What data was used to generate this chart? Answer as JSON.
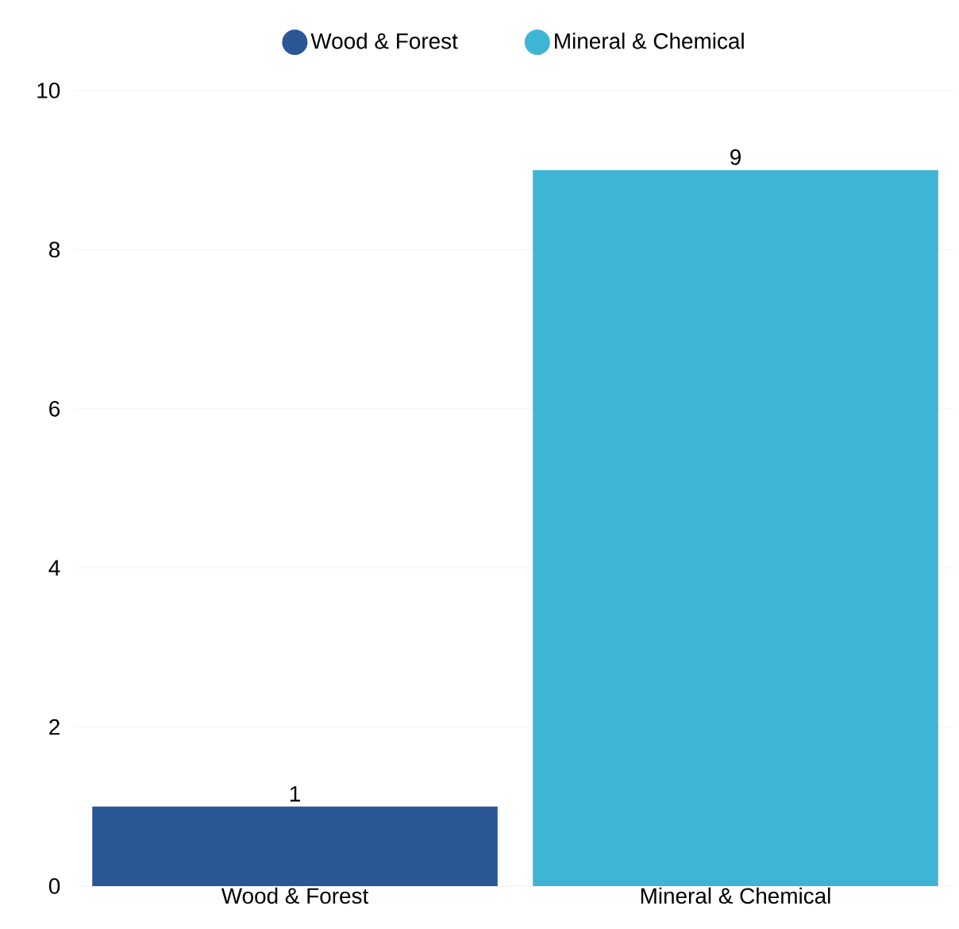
{
  "chart_data": {
    "type": "bar",
    "categories": [
      "Wood & Forest",
      "Mineral & Chemical"
    ],
    "series": [
      {
        "name": "Wood & Forest",
        "color": "#2b5797",
        "values": [
          1,
          null
        ]
      },
      {
        "name": "Mineral & Chemical",
        "color": "#3fb5d5",
        "values": [
          null,
          9
        ]
      }
    ],
    "ylim": [
      0,
      10
    ],
    "yticks": [
      0,
      2,
      4,
      6,
      8,
      10
    ],
    "grid": "y",
    "legend": "top",
    "data_labels": true
  }
}
